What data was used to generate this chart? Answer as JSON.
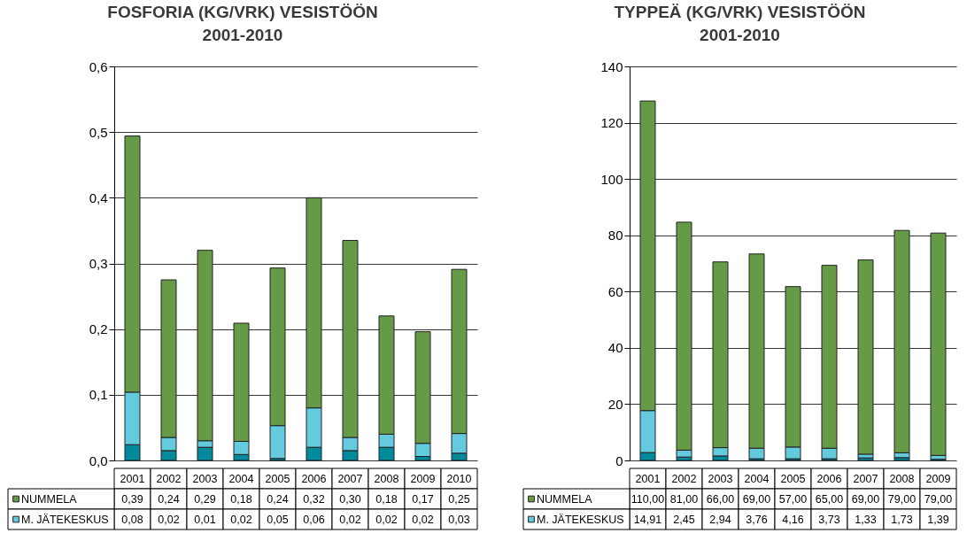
{
  "chart_data": [
    {
      "type": "bar",
      "title": "FOSFORIA (KG/VRK) VESISTÖÖN\n2001-2010",
      "stacked": true,
      "grid": "y",
      "legend": "bottom left",
      "categories": [
        "2001",
        "2002",
        "2003",
        "2004",
        "2005",
        "2006",
        "2007",
        "2008",
        "2009",
        "2010"
      ],
      "ylim": [
        0,
        0.6
      ],
      "yticks": [
        {
          "value": 0,
          "label": "0,0"
        },
        {
          "value": 0.1,
          "label": "0,1"
        },
        {
          "value": 0.2,
          "label": "0,2"
        },
        {
          "value": 0.3,
          "label": "0,3"
        },
        {
          "value": 0.4,
          "label": "0,4"
        },
        {
          "value": 0.5,
          "label": "0,5"
        },
        {
          "value": 0.6,
          "label": "0,6"
        }
      ],
      "series": [
        {
          "color": "#008a9c",
          "values": [
            0.024,
            0.015,
            0.02,
            0.009,
            0.003,
            0.02,
            0.015,
            0.02,
            0.006,
            0.011
          ]
        },
        {
          "name": "M. JÄTEKESKUS",
          "color": "#63cbdd",
          "values": [
            0.08,
            0.02,
            0.01,
            0.02,
            0.05,
            0.06,
            0.02,
            0.02,
            0.02,
            0.03
          ],
          "value_labels": [
            "0,08",
            "0,02",
            "0,01",
            "0,02",
            "0,05",
            "0,06",
            "0,02",
            "0,02",
            "0,02",
            "0,03"
          ]
        },
        {
          "name": "NUMMELA",
          "color": "#659a46",
          "values": [
            0.39,
            0.24,
            0.29,
            0.18,
            0.24,
            0.32,
            0.3,
            0.18,
            0.17,
            0.25
          ],
          "value_labels": [
            "0,39",
            "0,24",
            "0,29",
            "0,18",
            "0,24",
            "0,32",
            "0,30",
            "0,18",
            "0,17",
            "0,25"
          ]
        }
      ]
    },
    {
      "type": "bar",
      "title": "TYPPEÄ (KG/VRK) VESISTÖÖN\n2001-2010",
      "stacked": true,
      "grid": "y",
      "legend": "bottom left",
      "categories": [
        "2001",
        "2002",
        "2003",
        "2004",
        "2005",
        "2006",
        "2007",
        "2008",
        "2009"
      ],
      "ylim": [
        0,
        140
      ],
      "yticks": [
        0,
        20,
        40,
        60,
        80,
        100,
        120,
        140
      ],
      "series": [
        {
          "color": "#008a9c",
          "values": [
            2.8,
            1.2,
            1.6,
            0.6,
            0.6,
            0.6,
            0.9,
            1.0,
            0.4
          ]
        },
        {
          "name": "M. JÄTEKESKUS",
          "color": "#63cbdd",
          "values": [
            14.91,
            2.45,
            2.94,
            3.76,
            4.16,
            3.73,
            1.33,
            1.73,
            1.39
          ],
          "value_labels": [
            "14,91",
            "2,45",
            "2,94",
            "3,76",
            "4,16",
            "3,73",
            "1,33",
            "1,73",
            "1,39"
          ]
        },
        {
          "name": "NUMMELA",
          "color": "#659a46",
          "values": [
            110,
            81,
            66,
            69,
            57,
            65,
            69,
            79,
            79
          ],
          "value_labels": [
            "110,00",
            "81,00",
            "66,00",
            "69,00",
            "57,00",
            "65,00",
            "69,00",
            "79,00",
            "79,00"
          ]
        }
      ]
    }
  ]
}
